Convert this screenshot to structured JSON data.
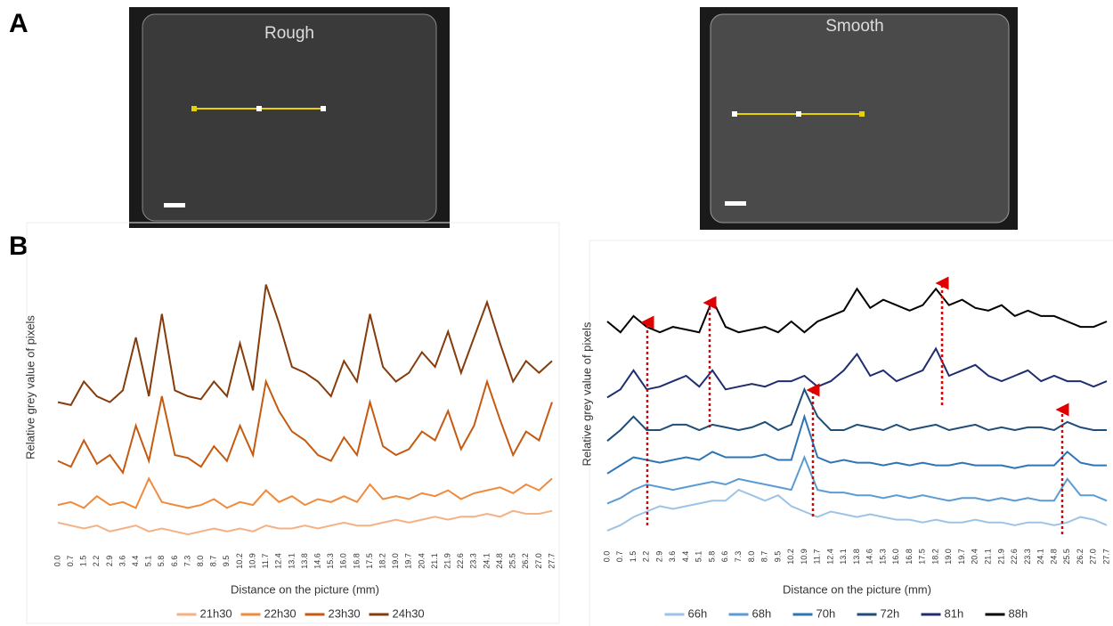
{
  "figure": {
    "panel_a": "A",
    "panel_b": "B",
    "image_left": "Rough",
    "image_right": "Smooth"
  },
  "chart_data": [
    {
      "type": "line",
      "xlabel": "Distance on the picture (mm)",
      "ylabel": "Relative grey value of pixels",
      "ylim": [
        0,
        100
      ],
      "categories": [
        "0.0",
        "0.7",
        "1.5",
        "2.2",
        "2.9",
        "3.6",
        "4.4",
        "5.1",
        "5.8",
        "6.6",
        "7.3",
        "8.0",
        "8.7",
        "9.5",
        "10.2",
        "10.9",
        "11.7",
        "12.4",
        "13.1",
        "13.8",
        "14.6",
        "15.3",
        "16.0",
        "16.8",
        "17.5",
        "18.2",
        "19.0",
        "19.7",
        "20.4",
        "21.1",
        "21.9",
        "22.6",
        "23.3",
        "24.1",
        "24.8",
        "25.5",
        "26.2",
        "27.0",
        "27.7"
      ],
      "series": [
        {
          "name": "21h30",
          "color": "#f4b183",
          "values": [
            7,
            6,
            5,
            6,
            4,
            5,
            6,
            4,
            5,
            4,
            3,
            4,
            5,
            4,
            5,
            4,
            6,
            5,
            5,
            6,
            5,
            6,
            7,
            6,
            6,
            7,
            8,
            7,
            8,
            9,
            8,
            9,
            9,
            10,
            9,
            11,
            10,
            10,
            11
          ]
        },
        {
          "name": "22h30",
          "color": "#f08a3c",
          "values": [
            13,
            14,
            12,
            16,
            13,
            14,
            12,
            22,
            14,
            13,
            12,
            13,
            15,
            12,
            14,
            13,
            18,
            14,
            16,
            13,
            15,
            14,
            16,
            14,
            20,
            15,
            16,
            15,
            17,
            16,
            18,
            15,
            17,
            18,
            19,
            17,
            20,
            18,
            22
          ]
        },
        {
          "name": "23h30",
          "color": "#c55a11",
          "values": [
            28,
            26,
            35,
            27,
            30,
            24,
            40,
            28,
            50,
            30,
            29,
            26,
            33,
            28,
            40,
            30,
            55,
            45,
            38,
            35,
            30,
            28,
            36,
            30,
            48,
            33,
            30,
            32,
            38,
            35,
            45,
            32,
            40,
            55,
            42,
            30,
            38,
            35,
            48
          ]
        },
        {
          "name": "24h30",
          "color": "#843c0c",
          "values": [
            48,
            47,
            55,
            50,
            48,
            52,
            70,
            50,
            78,
            52,
            50,
            49,
            55,
            50,
            68,
            52,
            88,
            75,
            60,
            58,
            55,
            50,
            62,
            55,
            78,
            60,
            55,
            58,
            65,
            60,
            72,
            58,
            70,
            82,
            68,
            55,
            62,
            58,
            62
          ]
        }
      ]
    },
    {
      "type": "line",
      "xlabel": "Distance on the picture (mm)",
      "ylabel": "Relative grey value of pixels",
      "ylim": [
        0,
        100
      ],
      "categories": [
        "0.0",
        "0.7",
        "1.5",
        "2.2",
        "2.9",
        "3.6",
        "4.4",
        "5.1",
        "5.8",
        "6.6",
        "7.3",
        "8.0",
        "8.7",
        "9.5",
        "10.2",
        "10.9",
        "11.7",
        "12.4",
        "13.1",
        "13.8",
        "14.6",
        "15.3",
        "16.0",
        "16.8",
        "17.5",
        "18.2",
        "19.0",
        "19.7",
        "20.4",
        "21.1",
        "21.9",
        "22.6",
        "23.3",
        "24.1",
        "24.8",
        "25.5",
        "26.2",
        "27.0",
        "27.7"
      ],
      "series": [
        {
          "name": "66h",
          "color": "#9dc3e6",
          "values": [
            3,
            5,
            8,
            10,
            12,
            11,
            12,
            13,
            14,
            14,
            18,
            16,
            14,
            16,
            12,
            10,
            8,
            10,
            9,
            8,
            9,
            8,
            7,
            7,
            6,
            7,
            6,
            6,
            7,
            6,
            6,
            5,
            6,
            6,
            5,
            6,
            8,
            7,
            5
          ]
        },
        {
          "name": "68h",
          "color": "#5b9bd5",
          "values": [
            13,
            15,
            18,
            20,
            19,
            18,
            19,
            20,
            21,
            20,
            22,
            21,
            20,
            19,
            18,
            30,
            18,
            17,
            17,
            16,
            16,
            15,
            16,
            15,
            16,
            15,
            14,
            15,
            15,
            14,
            15,
            14,
            15,
            14,
            14,
            22,
            16,
            16,
            14
          ]
        },
        {
          "name": "70h",
          "color": "#2e75b6",
          "values": [
            24,
            27,
            30,
            29,
            28,
            29,
            30,
            29,
            32,
            30,
            30,
            30,
            31,
            29,
            29,
            45,
            30,
            28,
            29,
            28,
            28,
            27,
            28,
            27,
            28,
            27,
            27,
            28,
            27,
            27,
            27,
            26,
            27,
            27,
            27,
            32,
            28,
            27,
            27
          ]
        },
        {
          "name": "72h",
          "color": "#1f4e79",
          "values": [
            36,
            40,
            45,
            40,
            40,
            42,
            42,
            40,
            42,
            41,
            40,
            41,
            43,
            40,
            42,
            55,
            45,
            40,
            40,
            42,
            41,
            40,
            42,
            40,
            41,
            42,
            40,
            41,
            42,
            40,
            41,
            40,
            41,
            41,
            40,
            43,
            41,
            40,
            40
          ]
        },
        {
          "name": "81h",
          "color": "#1f2d6e",
          "values": [
            52,
            55,
            62,
            55,
            56,
            58,
            60,
            56,
            62,
            55,
            56,
            57,
            56,
            58,
            58,
            60,
            56,
            58,
            62,
            68,
            60,
            62,
            58,
            60,
            62,
            70,
            60,
            62,
            64,
            60,
            58,
            60,
            62,
            58,
            60,
            58,
            58,
            56,
            58
          ]
        },
        {
          "name": "88h",
          "color": "#000000",
          "values": [
            80,
            76,
            82,
            78,
            76,
            78,
            77,
            76,
            88,
            78,
            76,
            77,
            78,
            76,
            80,
            76,
            80,
            82,
            84,
            92,
            85,
            88,
            86,
            84,
            86,
            92,
            86,
            88,
            85,
            84,
            86,
            82,
            84,
            82,
            82,
            80,
            78,
            78,
            80
          ]
        }
      ]
    }
  ]
}
